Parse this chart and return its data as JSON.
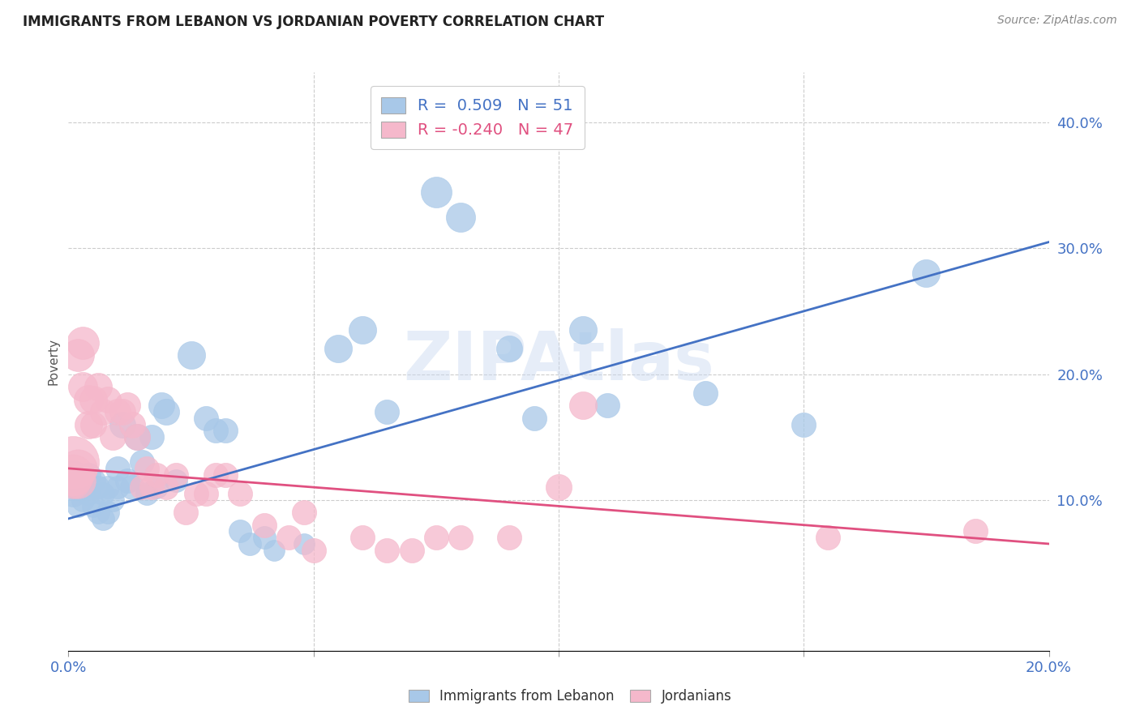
{
  "title": "IMMIGRANTS FROM LEBANON VS JORDANIAN POVERTY CORRELATION CHART",
  "source": "Source: ZipAtlas.com",
  "ylabel": "Poverty",
  "right_yticks": [
    "40.0%",
    "30.0%",
    "20.0%",
    "10.0%"
  ],
  "right_ytick_vals": [
    0.4,
    0.3,
    0.2,
    0.1
  ],
  "xlim": [
    0.0,
    0.2
  ],
  "ylim": [
    -0.02,
    0.44
  ],
  "legend_blue_r": "R =  0.509",
  "legend_blue_n": "N = 51",
  "legend_pink_r": "R = -0.240",
  "legend_pink_n": "N = 47",
  "blue_color": "#a8c8e8",
  "pink_color": "#f5b8cb",
  "line_blue": "#4472c4",
  "line_pink": "#e05080",
  "axis_label_color": "#4472c4",
  "watermark": "ZIPAtlas",
  "blue_points": [
    [
      0.001,
      0.12,
      14
    ],
    [
      0.001,
      0.105,
      12
    ],
    [
      0.002,
      0.11,
      12
    ],
    [
      0.002,
      0.095,
      10
    ],
    [
      0.003,
      0.115,
      11
    ],
    [
      0.003,
      0.1,
      10
    ],
    [
      0.004,
      0.12,
      11
    ],
    [
      0.004,
      0.105,
      10
    ],
    [
      0.005,
      0.115,
      11
    ],
    [
      0.005,
      0.095,
      10
    ],
    [
      0.006,
      0.11,
      10
    ],
    [
      0.006,
      0.09,
      10
    ],
    [
      0.007,
      0.105,
      10
    ],
    [
      0.007,
      0.085,
      10
    ],
    [
      0.008,
      0.11,
      10
    ],
    [
      0.008,
      0.09,
      10
    ],
    [
      0.009,
      0.1,
      10
    ],
    [
      0.01,
      0.125,
      11
    ],
    [
      0.01,
      0.11,
      10
    ],
    [
      0.011,
      0.16,
      12
    ],
    [
      0.012,
      0.115,
      11
    ],
    [
      0.013,
      0.11,
      11
    ],
    [
      0.014,
      0.15,
      12
    ],
    [
      0.015,
      0.13,
      11
    ],
    [
      0.016,
      0.105,
      10
    ],
    [
      0.017,
      0.15,
      11
    ],
    [
      0.018,
      0.11,
      10
    ],
    [
      0.019,
      0.175,
      12
    ],
    [
      0.02,
      0.17,
      12
    ],
    [
      0.022,
      0.115,
      10
    ],
    [
      0.025,
      0.215,
      13
    ],
    [
      0.028,
      0.165,
      11
    ],
    [
      0.03,
      0.155,
      11
    ],
    [
      0.032,
      0.155,
      11
    ],
    [
      0.035,
      0.075,
      10
    ],
    [
      0.037,
      0.065,
      10
    ],
    [
      0.04,
      0.07,
      10
    ],
    [
      0.042,
      0.06,
      9
    ],
    [
      0.048,
      0.065,
      9
    ],
    [
      0.055,
      0.22,
      13
    ],
    [
      0.06,
      0.235,
      13
    ],
    [
      0.065,
      0.17,
      11
    ],
    [
      0.075,
      0.345,
      15
    ],
    [
      0.08,
      0.325,
      14
    ],
    [
      0.09,
      0.22,
      12
    ],
    [
      0.095,
      0.165,
      11
    ],
    [
      0.105,
      0.235,
      13
    ],
    [
      0.11,
      0.175,
      11
    ],
    [
      0.13,
      0.185,
      11
    ],
    [
      0.15,
      0.16,
      11
    ],
    [
      0.175,
      0.28,
      13
    ]
  ],
  "pink_points": [
    [
      0.001,
      0.13,
      30
    ],
    [
      0.001,
      0.12,
      22
    ],
    [
      0.001,
      0.115,
      18
    ],
    [
      0.002,
      0.125,
      20
    ],
    [
      0.002,
      0.115,
      18
    ],
    [
      0.002,
      0.215,
      16
    ],
    [
      0.003,
      0.225,
      16
    ],
    [
      0.003,
      0.19,
      14
    ],
    [
      0.004,
      0.18,
      14
    ],
    [
      0.004,
      0.16,
      13
    ],
    [
      0.005,
      0.18,
      13
    ],
    [
      0.005,
      0.16,
      12
    ],
    [
      0.006,
      0.19,
      13
    ],
    [
      0.007,
      0.17,
      12
    ],
    [
      0.008,
      0.18,
      12
    ],
    [
      0.009,
      0.15,
      12
    ],
    [
      0.01,
      0.17,
      12
    ],
    [
      0.011,
      0.17,
      12
    ],
    [
      0.012,
      0.175,
      12
    ],
    [
      0.013,
      0.16,
      12
    ],
    [
      0.014,
      0.15,
      12
    ],
    [
      0.015,
      0.11,
      11
    ],
    [
      0.016,
      0.125,
      11
    ],
    [
      0.017,
      0.11,
      11
    ],
    [
      0.018,
      0.12,
      11
    ],
    [
      0.02,
      0.11,
      11
    ],
    [
      0.022,
      0.12,
      11
    ],
    [
      0.024,
      0.09,
      11
    ],
    [
      0.026,
      0.105,
      11
    ],
    [
      0.028,
      0.105,
      11
    ],
    [
      0.03,
      0.12,
      11
    ],
    [
      0.032,
      0.12,
      11
    ],
    [
      0.035,
      0.105,
      11
    ],
    [
      0.04,
      0.08,
      11
    ],
    [
      0.045,
      0.07,
      11
    ],
    [
      0.048,
      0.09,
      11
    ],
    [
      0.05,
      0.06,
      11
    ],
    [
      0.06,
      0.07,
      11
    ],
    [
      0.065,
      0.06,
      11
    ],
    [
      0.07,
      0.06,
      11
    ],
    [
      0.075,
      0.07,
      11
    ],
    [
      0.08,
      0.07,
      11
    ],
    [
      0.09,
      0.07,
      11
    ],
    [
      0.1,
      0.11,
      12
    ],
    [
      0.105,
      0.175,
      13
    ],
    [
      0.155,
      0.07,
      11
    ],
    [
      0.185,
      0.075,
      11
    ]
  ],
  "blue_line": [
    [
      0.0,
      0.085
    ],
    [
      0.2,
      0.305
    ]
  ],
  "pink_line": [
    [
      0.0,
      0.125
    ],
    [
      0.2,
      0.065
    ]
  ],
  "hgrid_vals": [
    0.1,
    0.2,
    0.3,
    0.4
  ],
  "vgrid_vals": [
    0.05,
    0.1,
    0.15
  ]
}
